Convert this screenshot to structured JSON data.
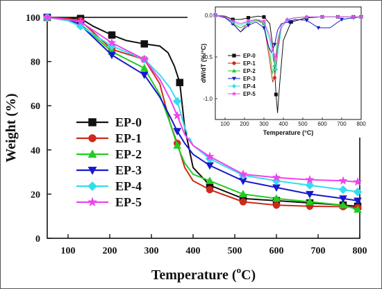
{
  "chart_data": [
    {
      "type": "line",
      "name": "main",
      "title": "",
      "xlabel": "Temperature (",
      "xlabel_superscript": "o",
      "xlabel_unit": "C)",
      "ylabel": "Weight (%)",
      "xlim": [
        50,
        800
      ],
      "ylim": [
        0,
        100
      ],
      "xticks": [
        100,
        200,
        300,
        400,
        500,
        600,
        700,
        800
      ],
      "yticks": [
        0,
        20,
        40,
        60,
        80,
        100
      ],
      "legend_position": "center-left",
      "series": [
        {
          "name": "EP-0",
          "color": "#111111",
          "marker": "square",
          "x": [
            50,
            100,
            130,
            160,
            205,
            240,
            283,
            320,
            340,
            355,
            368,
            380,
            400,
            440,
            520,
            600,
            680,
            760,
            795
          ],
          "y": [
            100,
            99.8,
            99.5,
            96,
            92,
            89.5,
            88,
            87,
            84,
            78,
            70.5,
            50,
            32,
            24,
            18,
            17,
            16,
            15,
            14.5
          ]
        },
        {
          "name": "EP-1",
          "color": "#cc2a1b",
          "marker": "circle",
          "x": [
            50,
            100,
            130,
            205,
            283,
            320,
            345,
            362,
            380,
            400,
            440,
            520,
            600,
            680,
            760,
            795
          ],
          "y": [
            100,
            99.5,
            98.5,
            85.5,
            81,
            70,
            52,
            43,
            32,
            26,
            22,
            16.5,
            15,
            14.5,
            14.3,
            14
          ]
        },
        {
          "name": "EP-2",
          "color": "#22cc22",
          "marker": "triangle-up",
          "x": [
            50,
            100,
            130,
            205,
            283,
            320,
            345,
            362,
            380,
            400,
            440,
            520,
            600,
            680,
            760,
            795
          ],
          "y": [
            100,
            99,
            97,
            84.5,
            77,
            65,
            52,
            42,
            34,
            29,
            26,
            20,
            18,
            16.5,
            15,
            13
          ]
        },
        {
          "name": "EP-3",
          "color": "#1818cc",
          "marker": "triangle-down",
          "x": [
            50,
            100,
            130,
            205,
            283,
            320,
            345,
            362,
            380,
            400,
            440,
            520,
            600,
            680,
            760,
            795
          ],
          "y": [
            100,
            99,
            96.5,
            83,
            74,
            64,
            55,
            48.5,
            43,
            38,
            33,
            26,
            23,
            20,
            18,
            17
          ]
        },
        {
          "name": "EP-4",
          "color": "#33ddee",
          "marker": "diamond",
          "x": [
            50,
            100,
            130,
            205,
            283,
            320,
            345,
            362,
            380,
            400,
            440,
            520,
            600,
            680,
            760,
            795
          ],
          "y": [
            100,
            98.5,
            96,
            87,
            81,
            74,
            68,
            62,
            50,
            42,
            36,
            28.5,
            26,
            24,
            22,
            21
          ]
        },
        {
          "name": "EP-5",
          "color": "#ee44ee",
          "marker": "star",
          "x": [
            50,
            100,
            130,
            205,
            283,
            320,
            345,
            362,
            380,
            400,
            440,
            520,
            600,
            680,
            760,
            795
          ],
          "y": [
            100,
            99,
            98,
            88.5,
            81,
            72,
            63,
            55.5,
            47,
            42,
            37,
            29,
            27.5,
            26.5,
            26,
            25.5
          ]
        }
      ]
    },
    {
      "type": "line",
      "name": "inset",
      "title": "",
      "xlabel": "Temperature (°C)",
      "ylabel": "dW/dT (%/°C)",
      "xlim": [
        50,
        800
      ],
      "ylim": [
        -1.25,
        0.1
      ],
      "xticks": [
        100,
        200,
        300,
        400,
        500,
        600,
        700,
        800
      ],
      "yticks": [
        0.0,
        -0.5,
        -1.0
      ],
      "ytick_labels": [
        "0.0",
        "-0.5",
        "-1.0"
      ],
      "legend_position": "bottom-left",
      "series": [
        {
          "name": "EP-0",
          "color": "#111111",
          "marker": "square",
          "x": [
            50,
            100,
            140,
            180,
            220,
            270,
            300,
            330,
            350,
            362,
            370,
            380,
            400,
            440,
            520,
            600,
            680,
            760,
            800
          ],
          "y": [
            0,
            -0.01,
            -0.05,
            -0.05,
            -0.03,
            -0.01,
            -0.02,
            -0.1,
            -0.45,
            -0.95,
            -1.17,
            -0.85,
            -0.3,
            -0.08,
            -0.03,
            -0.02,
            -0.02,
            -0.02,
            -0.02
          ]
        },
        {
          "name": "EP-1",
          "color": "#cc2a1b",
          "marker": "circle",
          "x": [
            50,
            100,
            140,
            180,
            220,
            260,
            300,
            330,
            345,
            355,
            370,
            390,
            420,
            460,
            520,
            600,
            680,
            760,
            800
          ],
          "y": [
            0,
            -0.02,
            -0.1,
            -0.2,
            -0.08,
            -0.05,
            -0.1,
            -0.55,
            -0.8,
            -0.75,
            -0.4,
            -0.15,
            -0.06,
            -0.03,
            -0.02,
            -0.02,
            -0.02,
            -0.02,
            -0.02
          ]
        },
        {
          "name": "EP-2",
          "color": "#22cc22",
          "marker": "triangle-up",
          "x": [
            50,
            100,
            140,
            180,
            220,
            260,
            300,
            330,
            345,
            355,
            370,
            390,
            420,
            460,
            520,
            600,
            680,
            760,
            800
          ],
          "y": [
            0,
            -0.02,
            -0.1,
            -0.15,
            -0.1,
            -0.06,
            -0.1,
            -0.45,
            -0.7,
            -0.6,
            -0.3,
            -0.12,
            -0.05,
            -0.03,
            -0.02,
            -0.02,
            -0.02,
            -0.02,
            -0.02
          ]
        },
        {
          "name": "EP-3",
          "color": "#1818cc",
          "marker": "triangle-down",
          "x": [
            50,
            100,
            140,
            180,
            220,
            260,
            300,
            325,
            340,
            355,
            370,
            390,
            430,
            460,
            520,
            580,
            640,
            700,
            760,
            800
          ],
          "y": [
            0,
            -0.03,
            -0.1,
            -0.2,
            -0.12,
            -0.08,
            -0.15,
            -0.38,
            -0.45,
            -0.35,
            -0.18,
            -0.1,
            -0.08,
            -0.05,
            -0.06,
            -0.15,
            -0.15,
            -0.05,
            -0.03,
            -0.02
          ]
        },
        {
          "name": "EP-4",
          "color": "#33ddee",
          "marker": "diamond",
          "x": [
            50,
            100,
            140,
            180,
            220,
            260,
            300,
            330,
            350,
            362,
            375,
            390,
            420,
            460,
            520,
            600,
            680,
            760,
            800
          ],
          "y": [
            0,
            -0.02,
            -0.08,
            -0.12,
            -0.08,
            -0.05,
            -0.08,
            -0.3,
            -0.55,
            -0.65,
            -0.4,
            -0.15,
            -0.06,
            -0.03,
            -0.02,
            -0.02,
            -0.02,
            -0.02,
            -0.02
          ]
        },
        {
          "name": "EP-5",
          "color": "#ee44ee",
          "marker": "star",
          "x": [
            50,
            100,
            140,
            180,
            220,
            260,
            300,
            330,
            350,
            362,
            375,
            390,
            420,
            460,
            520,
            600,
            680,
            760,
            800
          ],
          "y": [
            0,
            -0.02,
            -0.07,
            -0.1,
            -0.07,
            -0.05,
            -0.07,
            -0.25,
            -0.45,
            -0.5,
            -0.3,
            -0.12,
            -0.05,
            -0.03,
            -0.02,
            -0.02,
            -0.02,
            -0.02,
            -0.02
          ]
        }
      ]
    }
  ]
}
